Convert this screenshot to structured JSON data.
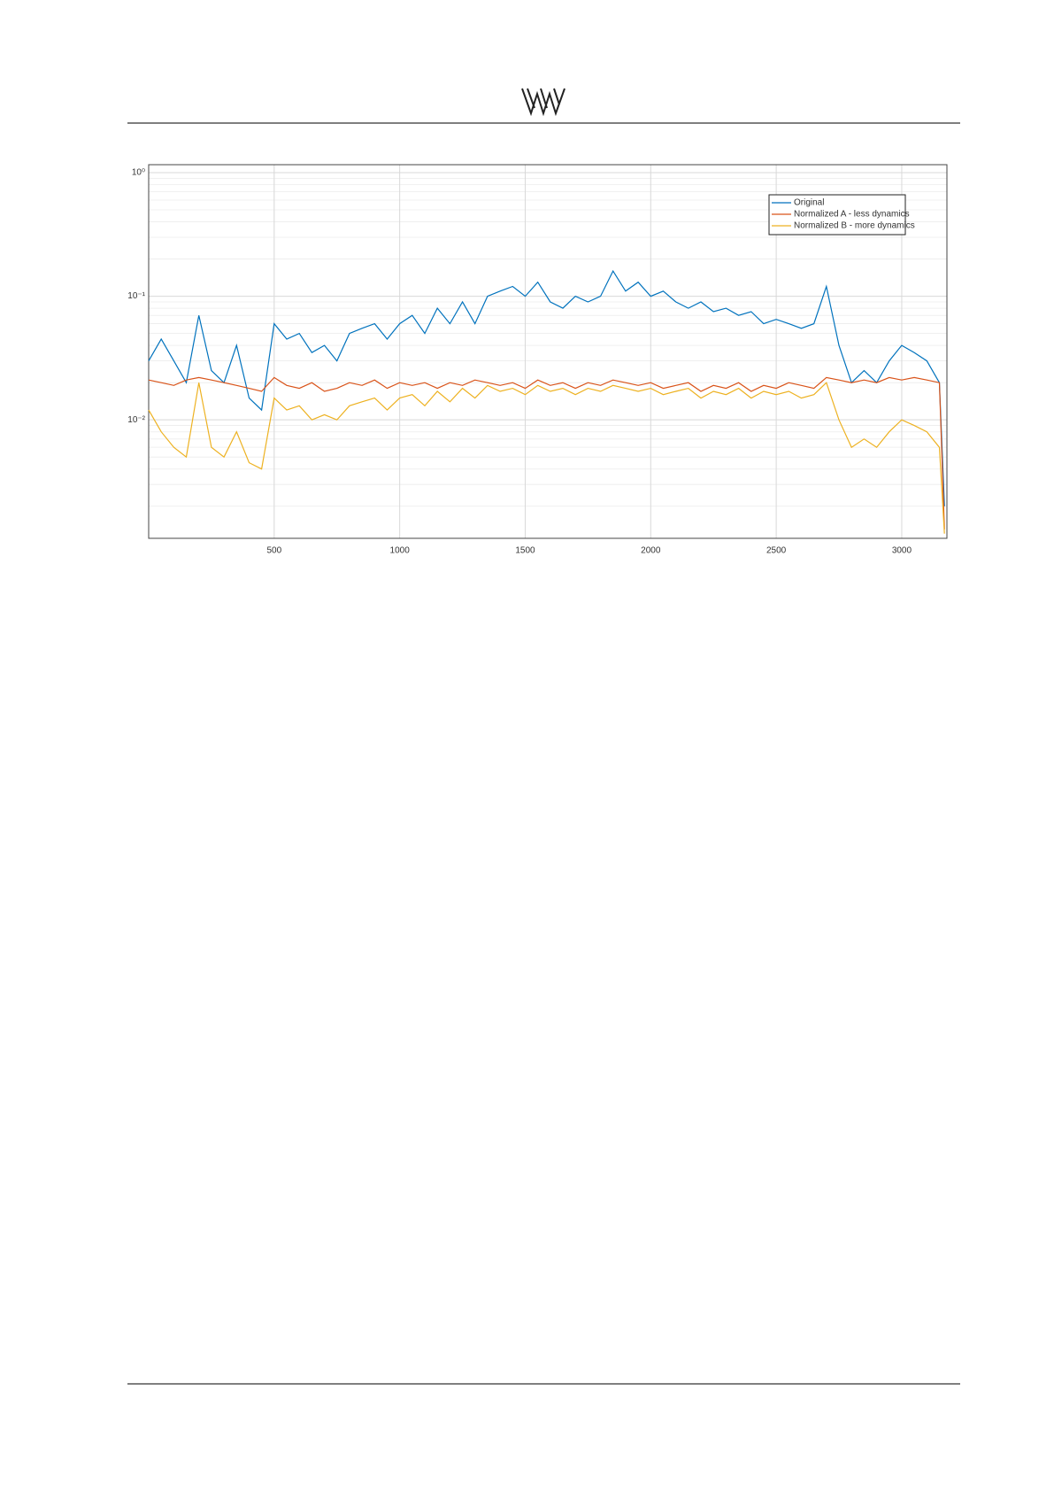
{
  "chart_data": {
    "type": "line",
    "x": [
      0,
      50,
      100,
      150,
      200,
      250,
      300,
      350,
      400,
      450,
      500,
      550,
      600,
      650,
      700,
      750,
      800,
      850,
      900,
      950,
      1000,
      1050,
      1100,
      1150,
      1200,
      1250,
      1300,
      1350,
      1400,
      1450,
      1500,
      1550,
      1600,
      1650,
      1700,
      1750,
      1800,
      1850,
      1900,
      1950,
      2000,
      2050,
      2100,
      2150,
      2200,
      2250,
      2300,
      2350,
      2400,
      2450,
      2500,
      2550,
      2600,
      2650,
      2700,
      2750,
      2800,
      2850,
      2900,
      2950,
      3000,
      3050,
      3100,
      3150,
      3170
    ],
    "series": [
      {
        "name": "Original",
        "color": "#0072bd",
        "values": [
          0.03,
          0.045,
          0.03,
          0.02,
          0.07,
          0.025,
          0.02,
          0.04,
          0.015,
          0.012,
          0.06,
          0.045,
          0.05,
          0.035,
          0.04,
          0.03,
          0.05,
          0.055,
          0.06,
          0.045,
          0.06,
          0.07,
          0.05,
          0.08,
          0.06,
          0.09,
          0.06,
          0.1,
          0.11,
          0.12,
          0.1,
          0.13,
          0.09,
          0.08,
          0.1,
          0.09,
          0.1,
          0.16,
          0.11,
          0.13,
          0.1,
          0.11,
          0.09,
          0.08,
          0.09,
          0.075,
          0.08,
          0.07,
          0.075,
          0.06,
          0.065,
          0.06,
          0.055,
          0.06,
          0.12,
          0.04,
          0.02,
          0.025,
          0.02,
          0.03,
          0.04,
          0.035,
          0.03,
          0.02,
          0.002
        ]
      },
      {
        "name": "Normalized A - less dynamics",
        "color": "#d95319",
        "values": [
          0.021,
          0.02,
          0.019,
          0.021,
          0.022,
          0.021,
          0.02,
          0.019,
          0.018,
          0.017,
          0.022,
          0.019,
          0.018,
          0.02,
          0.017,
          0.018,
          0.02,
          0.019,
          0.021,
          0.018,
          0.02,
          0.019,
          0.02,
          0.018,
          0.02,
          0.019,
          0.021,
          0.02,
          0.019,
          0.02,
          0.018,
          0.021,
          0.019,
          0.02,
          0.018,
          0.02,
          0.019,
          0.021,
          0.02,
          0.019,
          0.02,
          0.018,
          0.019,
          0.02,
          0.017,
          0.019,
          0.018,
          0.02,
          0.017,
          0.019,
          0.018,
          0.02,
          0.019,
          0.018,
          0.022,
          0.021,
          0.02,
          0.021,
          0.02,
          0.022,
          0.021,
          0.022,
          0.021,
          0.02,
          0.0013
        ]
      },
      {
        "name": "Normalized B - more dynamics",
        "color": "#edb120",
        "values": [
          0.012,
          0.008,
          0.006,
          0.005,
          0.02,
          0.006,
          0.005,
          0.008,
          0.0045,
          0.004,
          0.015,
          0.012,
          0.013,
          0.01,
          0.011,
          0.01,
          0.013,
          0.014,
          0.015,
          0.012,
          0.015,
          0.016,
          0.013,
          0.017,
          0.014,
          0.018,
          0.015,
          0.019,
          0.017,
          0.018,
          0.016,
          0.019,
          0.017,
          0.018,
          0.016,
          0.018,
          0.017,
          0.019,
          0.018,
          0.017,
          0.018,
          0.016,
          0.017,
          0.018,
          0.015,
          0.017,
          0.016,
          0.018,
          0.015,
          0.017,
          0.016,
          0.017,
          0.015,
          0.016,
          0.02,
          0.01,
          0.006,
          0.007,
          0.006,
          0.008,
          0.01,
          0.009,
          0.008,
          0.006,
          0.0012
        ]
      }
    ],
    "xlim": [
      0,
      3180
    ],
    "xticks": [
      500,
      1000,
      1500,
      2000,
      2500,
      3000
    ],
    "ylim": [
      0.0011,
      1.16
    ],
    "log_y": true,
    "yticks": [
      {
        "value": 0.01,
        "label": "10⁻²"
      },
      {
        "value": 0.1,
        "label": "10⁻¹"
      },
      {
        "value": 1,
        "label": "10⁰"
      }
    ],
    "grid": true,
    "minor_grid": true,
    "legend_position": "upper right"
  }
}
